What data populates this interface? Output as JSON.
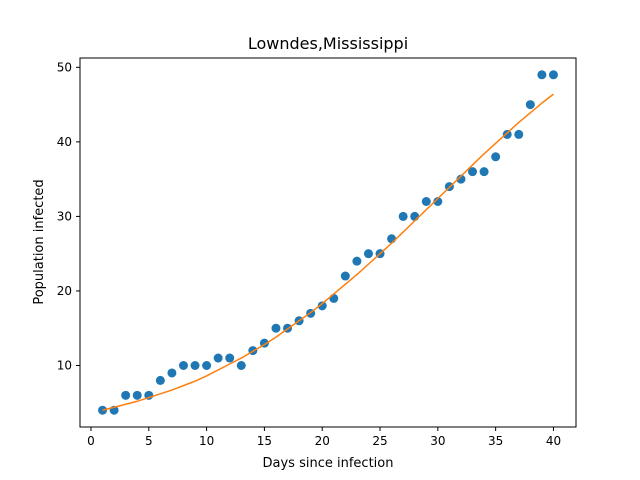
{
  "chart_data": {
    "type": "scatter",
    "title": "Lowndes,Mississippi",
    "xlabel": "Days since infection",
    "ylabel": "Population infected",
    "xlim": [
      -0.95,
      41.95
    ],
    "ylim": [
      1.75,
      51.25
    ],
    "xticks": [
      0,
      5,
      10,
      15,
      20,
      25,
      30,
      35,
      40
    ],
    "yticks": [
      10,
      20,
      30,
      40,
      50
    ],
    "grid": false,
    "series": [
      {
        "kind": "scatter",
        "color": "#1f77b4",
        "x": [
          1,
          2,
          3,
          4,
          5,
          6,
          7,
          8,
          9,
          10,
          11,
          12,
          13,
          14,
          15,
          16,
          17,
          18,
          19,
          20,
          21,
          22,
          23,
          24,
          25,
          26,
          27,
          28,
          29,
          30,
          31,
          32,
          33,
          34,
          35,
          36,
          37,
          38,
          39,
          40
        ],
        "y": [
          4,
          4,
          6,
          6,
          6,
          8,
          9,
          10,
          10,
          10,
          11,
          11,
          10,
          12,
          13,
          15,
          15,
          16,
          17,
          18,
          19,
          22,
          24,
          25,
          25,
          27,
          30,
          30,
          32,
          32,
          34,
          35,
          36,
          36,
          38,
          41,
          41,
          45,
          49,
          49
        ]
      },
      {
        "kind": "line",
        "color": "#ff7f0e",
        "x": [
          1,
          2,
          3,
          4,
          5,
          6,
          7,
          8,
          9,
          10,
          11,
          12,
          13,
          14,
          15,
          16,
          17,
          18,
          19,
          20,
          21,
          22,
          23,
          24,
          25,
          26,
          27,
          28,
          29,
          30,
          31,
          32,
          33,
          34,
          35,
          36,
          37,
          38,
          39,
          40
        ],
        "y": [
          4.0,
          4.4,
          4.8,
          5.2,
          5.7,
          6.2,
          6.7,
          7.3,
          7.9,
          8.6,
          9.4,
          10.2,
          11.0,
          11.9,
          12.8,
          13.8,
          14.9,
          16.0,
          17.1,
          18.3,
          19.6,
          20.9,
          22.2,
          23.6,
          25.0,
          26.4,
          27.9,
          29.4,
          30.9,
          32.4,
          33.9,
          35.4,
          36.9,
          38.4,
          39.8,
          41.2,
          42.6,
          43.9,
          45.2,
          46.4
        ]
      }
    ]
  }
}
